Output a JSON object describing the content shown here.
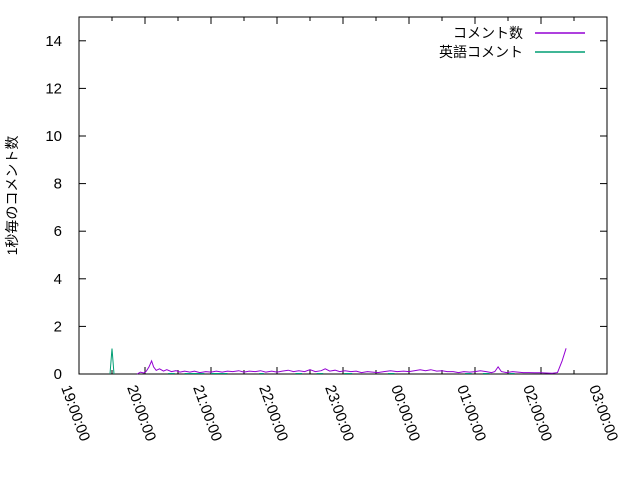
{
  "colors": {
    "background": "#ffffff",
    "axis": "#000000",
    "text": "#000000"
  },
  "chart_data": {
    "type": "line",
    "title": "",
    "xlabel": "",
    "ylabel": "1秒毎のコメント数",
    "grid": false,
    "legend_position": "top-right-inside",
    "ylim": [
      0,
      15
    ],
    "yticks": [
      0,
      2,
      4,
      6,
      8,
      10,
      12,
      14
    ],
    "x_hours_range": [
      0,
      8
    ],
    "xtick_labels": [
      "19:00:00",
      "20:00:00",
      "21:00:00",
      "22:00:00",
      "23:00:00",
      "00:00:00",
      "01:00:00",
      "02:00:00",
      "03:00:00"
    ],
    "x_minor_tick_every_hours": 0.5,
    "series": [
      {
        "name": "コメント数",
        "key": "comment-count",
        "color": "#9400d3",
        "points": [
          [
            0.88,
            0
          ],
          [
            0.93,
            0.08
          ],
          [
            0.98,
            0.04
          ],
          [
            1.02,
            0.12
          ],
          [
            1.06,
            0.3
          ],
          [
            1.1,
            0.55
          ],
          [
            1.13,
            0.3
          ],
          [
            1.17,
            0.15
          ],
          [
            1.22,
            0.22
          ],
          [
            1.28,
            0.12
          ],
          [
            1.33,
            0.18
          ],
          [
            1.4,
            0.1
          ],
          [
            1.47,
            0.14
          ],
          [
            1.53,
            0.08
          ],
          [
            1.6,
            0.12
          ],
          [
            1.68,
            0.08
          ],
          [
            1.75,
            0.12
          ],
          [
            1.83,
            0.06
          ],
          [
            1.92,
            0.1
          ],
          [
            2.0,
            0.08
          ],
          [
            2.08,
            0.12
          ],
          [
            2.17,
            0.08
          ],
          [
            2.25,
            0.12
          ],
          [
            2.33,
            0.1
          ],
          [
            2.42,
            0.14
          ],
          [
            2.5,
            0.08
          ],
          [
            2.58,
            0.12
          ],
          [
            2.67,
            0.1
          ],
          [
            2.75,
            0.14
          ],
          [
            2.83,
            0.08
          ],
          [
            2.92,
            0.12
          ],
          [
            3.0,
            0.08
          ],
          [
            3.08,
            0.12
          ],
          [
            3.17,
            0.16
          ],
          [
            3.25,
            0.1
          ],
          [
            3.33,
            0.14
          ],
          [
            3.42,
            0.1
          ],
          [
            3.5,
            0.18
          ],
          [
            3.58,
            0.1
          ],
          [
            3.67,
            0.14
          ],
          [
            3.73,
            0.22
          ],
          [
            3.8,
            0.12
          ],
          [
            3.88,
            0.16
          ],
          [
            3.95,
            0.1
          ],
          [
            4.03,
            0.14
          ],
          [
            4.12,
            0.1
          ],
          [
            4.2,
            0.12
          ],
          [
            4.28,
            0.06
          ],
          [
            4.37,
            0.1
          ],
          [
            4.45,
            0.08
          ],
          [
            4.53,
            0.06
          ],
          [
            4.62,
            0.1
          ],
          [
            4.72,
            0.14
          ],
          [
            4.82,
            0.1
          ],
          [
            4.92,
            0.12
          ],
          [
            5.0,
            0.1
          ],
          [
            5.08,
            0.14
          ],
          [
            5.17,
            0.18
          ],
          [
            5.25,
            0.14
          ],
          [
            5.33,
            0.18
          ],
          [
            5.42,
            0.12
          ],
          [
            5.5,
            0.14
          ],
          [
            5.58,
            0.1
          ],
          [
            5.67,
            0.1
          ],
          [
            5.75,
            0.06
          ],
          [
            5.83,
            0.1
          ],
          [
            5.92,
            0.08
          ],
          [
            6.0,
            0.1
          ],
          [
            6.08,
            0.14
          ],
          [
            6.17,
            0.1
          ],
          [
            6.25,
            0.06
          ],
          [
            6.3,
            0.1
          ],
          [
            6.35,
            0.3
          ],
          [
            6.4,
            0.1
          ],
          [
            6.48,
            0.06
          ],
          [
            6.57,
            0.1
          ],
          [
            6.65,
            0.08
          ],
          [
            6.73,
            0.06
          ],
          [
            6.82,
            0.06
          ],
          [
            6.9,
            0.05
          ],
          [
            7.0,
            0.05
          ],
          [
            7.08,
            0.04
          ],
          [
            7.17,
            0.03
          ],
          [
            7.25,
            0.06
          ],
          [
            7.32,
            0.55
          ],
          [
            7.38,
            1.08
          ]
        ]
      },
      {
        "name": "英語コメント",
        "key": "english-comments",
        "color": "#009e73",
        "points": [
          [
            0.47,
            0
          ],
          [
            0.5,
            1.07
          ],
          [
            0.53,
            0
          ],
          null,
          [
            1.35,
            0.02
          ],
          [
            1.45,
            0.02
          ],
          null,
          [
            1.6,
            0.02
          ],
          [
            1.9,
            0.02
          ],
          null,
          [
            2.0,
            0.02
          ],
          [
            2.25,
            0.02
          ],
          null,
          [
            2.73,
            0.02
          ],
          [
            2.8,
            0.02
          ],
          null,
          [
            3.28,
            0.02
          ],
          [
            3.38,
            0.02
          ],
          null,
          [
            3.6,
            0.02
          ],
          [
            3.7,
            0.02
          ],
          null,
          [
            4.02,
            0.02
          ],
          [
            4.14,
            0.02
          ],
          null,
          [
            4.68,
            0.02
          ],
          [
            4.78,
            0.02
          ],
          null,
          [
            5.85,
            0.02
          ],
          [
            5.95,
            0.02
          ],
          null,
          [
            6.12,
            0.02
          ],
          [
            6.22,
            0.02
          ],
          null,
          [
            6.52,
            0.02
          ],
          [
            6.6,
            0.02
          ]
        ]
      }
    ]
  }
}
